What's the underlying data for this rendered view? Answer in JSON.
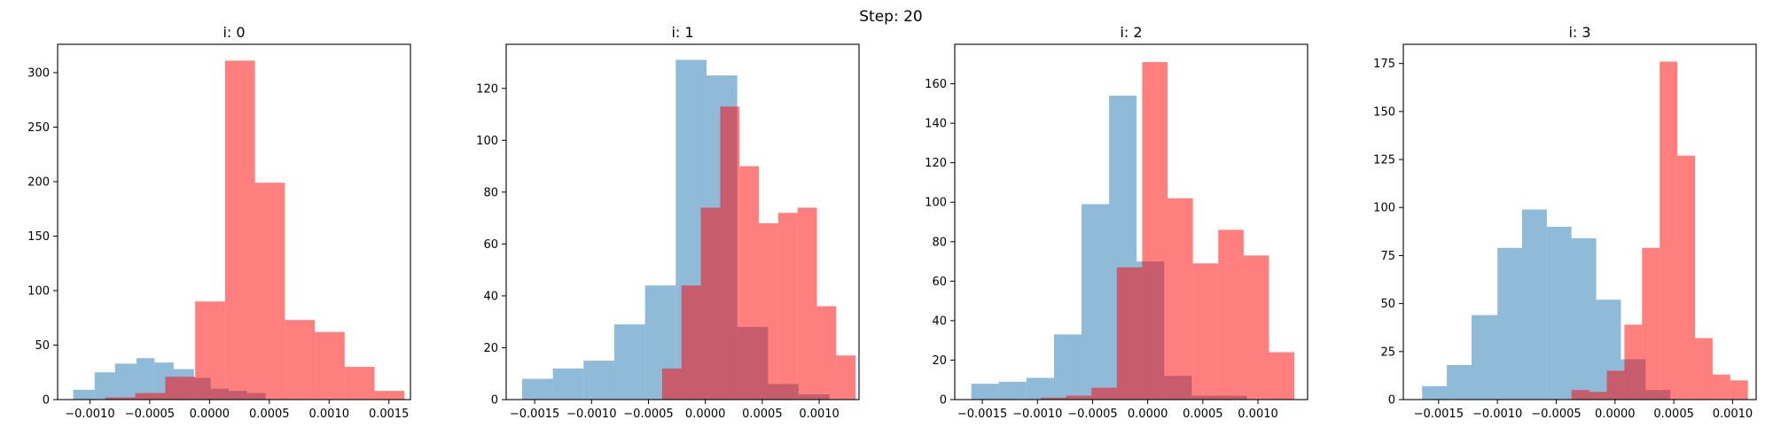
{
  "figure": {
    "suptitle": "Step: 20",
    "colors": {
      "blue": "#1f77b4",
      "red": "#ff0000"
    },
    "alpha": 0.5
  },
  "chart_data": [
    {
      "type": "bar",
      "title": "i: 0",
      "xlim": [
        -0.00127,
        0.00168
      ],
      "ylim": [
        0,
        326
      ],
      "xticks": [
        -0.001,
        -0.0005,
        0.0,
        0.0005,
        0.001,
        0.0015
      ],
      "xtick_labels": [
        "−0.0010",
        "−0.0005",
        "0.0000",
        "0.0005",
        "0.0010",
        "0.0015"
      ],
      "yticks": [
        0,
        50,
        100,
        150,
        200,
        250,
        300
      ],
      "ytick_labels": [
        "0",
        "50",
        "100",
        "150",
        "200",
        "250",
        "300"
      ],
      "series": [
        {
          "color": "blue",
          "edges": [
            -0.00114,
            -0.00096,
            -0.00079,
            -0.00061,
            -0.00046,
            -0.0003,
            -0.00013,
            1e-05,
            0.00016,
            0.00031,
            0.00047
          ],
          "counts": [
            9,
            25,
            33,
            38,
            34,
            28,
            20,
            10,
            8,
            6
          ]
        },
        {
          "color": "red",
          "edges": [
            -0.00087,
            -0.00062,
            -0.00037,
            -0.00012,
            0.00013,
            0.00038,
            0.00063,
            0.00088,
            0.00113,
            0.00138,
            0.00163
          ],
          "counts": [
            2,
            6,
            21,
            90,
            311,
            199,
            73,
            62,
            30,
            8
          ]
        }
      ]
    },
    {
      "type": "bar",
      "title": "i: 1",
      "xlim": [
        -0.00175,
        0.00135
      ],
      "ylim": [
        0,
        137
      ],
      "xticks": [
        -0.0015,
        -0.001,
        -0.0005,
        0.0,
        0.0005,
        0.001
      ],
      "xtick_labels": [
        "−0.0015",
        "−0.0010",
        "−0.0005",
        "0.0000",
        "0.0005",
        "0.0010"
      ],
      "yticks": [
        0,
        20,
        40,
        60,
        80,
        100,
        120
      ],
      "ytick_labels": [
        "0",
        "20",
        "40",
        "60",
        "80",
        "100",
        "120"
      ],
      "series": [
        {
          "color": "blue",
          "edges": [
            -0.00161,
            -0.00134,
            -0.00107,
            -0.0008,
            -0.00053,
            -0.00026,
            1e-05,
            0.00028,
            0.00055,
            0.00082,
            0.00109
          ],
          "counts": [
            8,
            12,
            15,
            29,
            44,
            131,
            125,
            28,
            6,
            2
          ]
        },
        {
          "color": "red",
          "edges": [
            -0.00038,
            -0.00021,
            -4e-05,
            0.00013,
            0.0003,
            0.00047,
            0.00064,
            0.00081,
            0.00098,
            0.00115,
            0.00132
          ],
          "counts": [
            12,
            44,
            74,
            113,
            90,
            68,
            72,
            74,
            36,
            17
          ]
        }
      ]
    },
    {
      "type": "bar",
      "title": "i: 2",
      "xlim": [
        -0.00175,
        0.00145
      ],
      "ylim": [
        0,
        180
      ],
      "xticks": [
        -0.0015,
        -0.001,
        -0.0005,
        0.0,
        0.0005,
        0.001
      ],
      "xtick_labels": [
        "−0.0015",
        "−0.0010",
        "−0.0005",
        "0.0000",
        "0.0005",
        "0.0010"
      ],
      "yticks": [
        0,
        20,
        40,
        60,
        80,
        100,
        120,
        140,
        160
      ],
      "ytick_labels": [
        "0",
        "20",
        "40",
        "60",
        "80",
        "100",
        "120",
        "140",
        "160"
      ],
      "series": [
        {
          "color": "blue",
          "edges": [
            -0.0016,
            -0.00135,
            -0.0011,
            -0.00085,
            -0.0006,
            -0.00035,
            -0.0001,
            0.00015,
            0.0004,
            0.00065,
            0.0009
          ],
          "counts": [
            8,
            9,
            11,
            33,
            99,
            154,
            70,
            12,
            2,
            2
          ]
        },
        {
          "color": "red",
          "edges": [
            -0.00097,
            -0.00074,
            -0.00051,
            -0.00028,
            -5e-05,
            0.00018,
            0.00041,
            0.00064,
            0.00087,
            0.0011,
            0.00133
          ],
          "counts": [
            1,
            2,
            6,
            67,
            171,
            102,
            69,
            86,
            73,
            24
          ]
        }
      ]
    },
    {
      "type": "bar",
      "title": "i: 3",
      "xlim": [
        -0.0018,
        0.0012
      ],
      "ylim": [
        0,
        185
      ],
      "xticks": [
        -0.0015,
        -0.001,
        -0.0005,
        0.0,
        0.0005,
        0.001
      ],
      "xtick_labels": [
        "−0.0015",
        "−0.0010",
        "−0.0005",
        "0.0000",
        "0.0005",
        "0.0010"
      ],
      "yticks": [
        0,
        25,
        50,
        75,
        100,
        125,
        150,
        175
      ],
      "ytick_labels": [
        "0",
        "25",
        "50",
        "75",
        "100",
        "125",
        "150",
        "175"
      ],
      "series": [
        {
          "color": "blue",
          "edges": [
            -0.00164,
            -0.00143,
            -0.00122,
            -0.001,
            -0.00079,
            -0.00058,
            -0.00037,
            -0.00016,
            5e-05,
            0.00026,
            0.00047
          ],
          "counts": [
            7,
            18,
            44,
            79,
            99,
            90,
            84,
            52,
            21,
            5
          ]
        },
        {
          "color": "red",
          "edges": [
            -0.00037,
            -0.00022,
            -7e-05,
            8e-05,
            0.00023,
            0.00038,
            0.00053,
            0.00068,
            0.00083,
            0.00098,
            0.00113
          ],
          "counts": [
            5,
            4,
            15,
            39,
            79,
            176,
            127,
            32,
            13,
            10
          ]
        }
      ]
    }
  ]
}
